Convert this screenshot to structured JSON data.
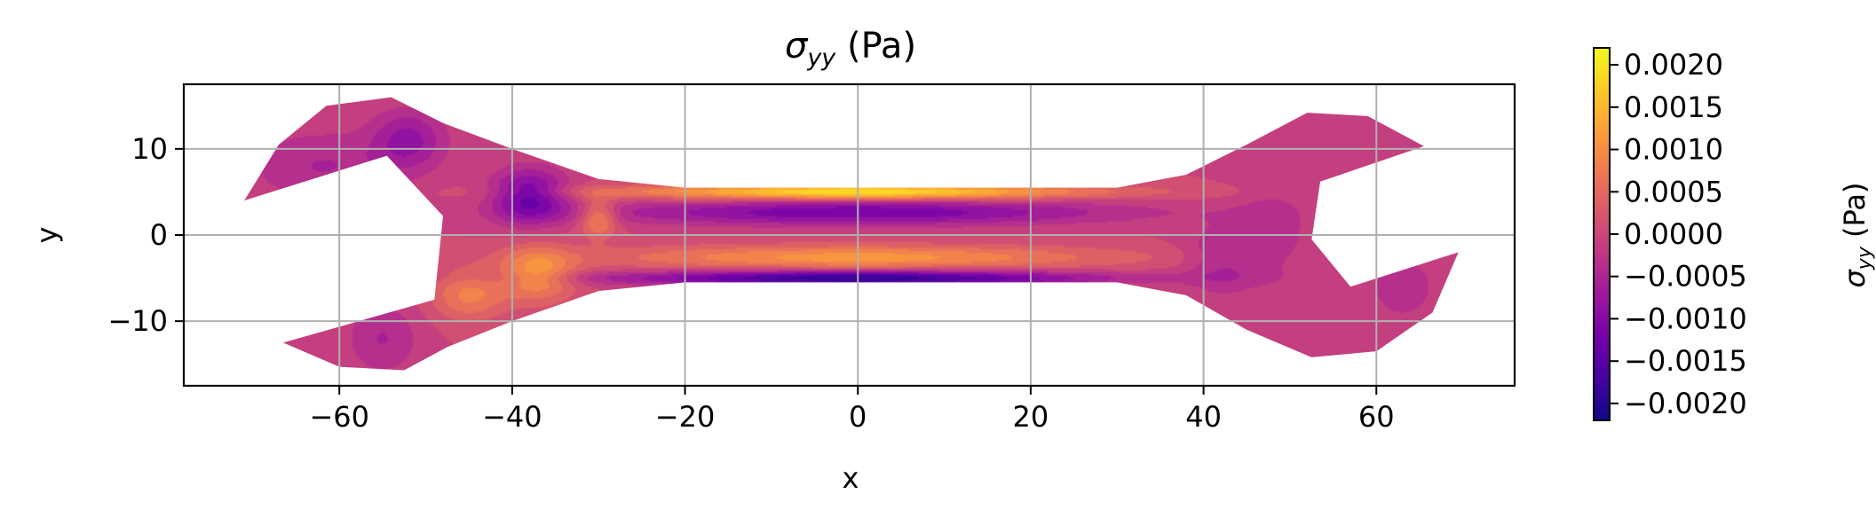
{
  "chart_data": {
    "type": "heatmap",
    "title_base": "σ",
    "title_sub": "yy",
    "title_unit": " (Pa)",
    "xlabel": "x",
    "ylabel": "y",
    "xlim": [
      -78,
      76
    ],
    "ylim": [
      -17.5,
      17.5
    ],
    "x_ticks": [
      -60,
      -40,
      -20,
      0,
      20,
      40,
      60
    ],
    "x_tick_labels": [
      "−60",
      "−40",
      "−20",
      "0",
      "20",
      "40",
      "60"
    ],
    "y_ticks": [
      -10,
      0,
      10
    ],
    "y_tick_labels": [
      "−10",
      "0",
      "10"
    ],
    "grid": true,
    "colormap": "plasma",
    "colorbar": {
      "label_base": "σ",
      "label_sub": "yy",
      "label_unit": " (Pa)",
      "range": [
        -0.0022,
        0.0022
      ],
      "ticks": [
        0.002,
        0.0015,
        0.001,
        0.0005,
        0.0,
        -0.0005,
        -0.001,
        -0.0015,
        -0.002
      ],
      "tick_labels": [
        "0.0020",
        "0.0015",
        "0.0010",
        "0.0005",
        "0.0000",
        "−0.0005",
        "−0.0010",
        "−0.0015",
        "−0.0020"
      ]
    },
    "colormap_stops": [
      "#0d0887",
      "#46039f",
      "#7201a8",
      "#9c179e",
      "#bd3786",
      "#d8576b",
      "#ed7953",
      "#fb9f3a",
      "#fdca26",
      "#f0f921"
    ],
    "shape_outline": [
      [
        -71,
        4
      ],
      [
        -67,
        10.5
      ],
      [
        -61.5,
        15
      ],
      [
        -54,
        16
      ],
      [
        -48,
        13
      ],
      [
        -40,
        10
      ],
      [
        -30,
        6.5
      ],
      [
        -20,
        5.5
      ],
      [
        30,
        5.5
      ],
      [
        38,
        7
      ],
      [
        45,
        10.5
      ],
      [
        52,
        14.2
      ],
      [
        59,
        13.8
      ],
      [
        65.5,
        10.3
      ],
      [
        53.5,
        6.2
      ],
      [
        52.5,
        -0.5
      ],
      [
        57,
        -6
      ],
      [
        69.5,
        -2
      ],
      [
        66.5,
        -9
      ],
      [
        60,
        -13.5
      ],
      [
        52.5,
        -14.2
      ],
      [
        45,
        -11
      ],
      [
        38,
        -7
      ],
      [
        30,
        -5.5
      ],
      [
        -20,
        -5.5
      ],
      [
        -30,
        -6.5
      ],
      [
        -40,
        -10
      ],
      [
        -47.5,
        -13
      ],
      [
        -52.5,
        -15.7
      ],
      [
        -60,
        -15.3
      ],
      [
        -66.5,
        -12.5
      ],
      [
        -49,
        -7.5
      ],
      [
        -48,
        2.2
      ],
      [
        -54.5,
        9.2
      ]
    ],
    "stress_field_blobs": [
      {
        "x": 0,
        "y": 5,
        "sx": 18,
        "sy": 0.6,
        "value": 0.002
      },
      {
        "x": 0,
        "y": -5,
        "sx": 18,
        "sy": 0.6,
        "value": -0.002
      },
      {
        "x": 0,
        "y": 2.6,
        "sx": 20,
        "sy": 1.0,
        "value": -0.0012
      },
      {
        "x": 0,
        "y": -2.6,
        "sx": 20,
        "sy": 1.0,
        "value": 0.0011
      },
      {
        "x": -38,
        "y": 4.5,
        "sx": 3,
        "sy": 2.2,
        "value": -0.0013
      },
      {
        "x": -37,
        "y": -4.5,
        "sx": 3,
        "sy": 2.2,
        "value": 0.0011
      },
      {
        "x": -30,
        "y": 2,
        "sx": 1.5,
        "sy": 1.5,
        "value": 0.001
      },
      {
        "x": -52,
        "y": 11,
        "sx": 3,
        "sy": 2.5,
        "value": -0.0008
      },
      {
        "x": -62,
        "y": 8,
        "sx": 6,
        "sy": 3,
        "value": -0.0005
      },
      {
        "x": -55,
        "y": -12,
        "sx": 3,
        "sy": 3,
        "value": -0.0005
      },
      {
        "x": -45,
        "y": -7,
        "sx": 3,
        "sy": 2,
        "value": 0.0008
      },
      {
        "x": 42,
        "y": -3,
        "sx": 3,
        "sy": 3,
        "value": -0.0005
      },
      {
        "x": 48,
        "y": 0,
        "sx": 3,
        "sy": 4,
        "value": -0.0004
      },
      {
        "x": 63,
        "y": -6,
        "sx": 3,
        "sy": 3,
        "value": -0.0004
      }
    ]
  }
}
